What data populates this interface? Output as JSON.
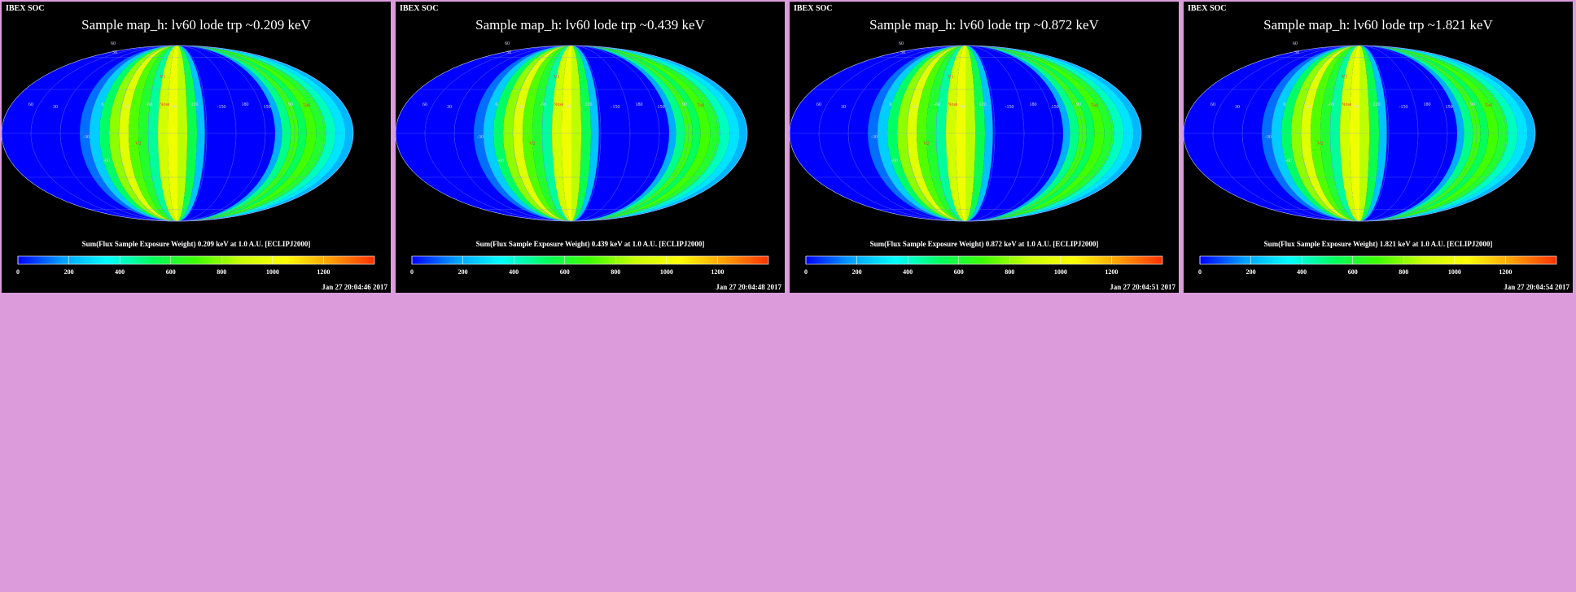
{
  "colors": {
    "page_background": "#dc9cdc",
    "panel_background": "#000000",
    "colormap": [
      "#0000ff",
      "#00a0ff",
      "#00ffff",
      "#00ff60",
      "#40ff00",
      "#c8ff00",
      "#ffff00",
      "#ffa000",
      "#ff3000"
    ]
  },
  "chart_data": [
    {
      "type": "heatmap",
      "projection": "Mollweide all-sky map",
      "corner_label": "IBEX SOC",
      "title": "Sample map_h: lv60 lode trp ~0.209 keV",
      "colorbar_label": "Sum(Flux Sample Exposure Weight) 0.209 keV at 1.0 A.U. [ECLIPJ2000]",
      "colorbar_ticks": [
        "0",
        "200",
        "400",
        "600",
        "800",
        "1000",
        "1200"
      ],
      "colorbar_range": [
        0,
        1400
      ],
      "timestamp": "Jan 27 20:04:46 2017",
      "map_labels": {
        "lon_ticks": [
          "60",
          "30",
          "0",
          "-30",
          "-60",
          "-90",
          "120",
          "-150",
          "180",
          "150",
          "90"
        ],
        "lat_ticks": [
          "30",
          "60",
          "-30",
          "-60"
        ],
        "markers": [
          "V1",
          "V2",
          "Nose",
          "Tail"
        ]
      },
      "bands": [
        {
          "lon_from": -10,
          "lon_to": 0,
          "value": 120
        },
        {
          "lon_from": 0,
          "lon_to": 10,
          "value": 260
        },
        {
          "lon_from": 10,
          "lon_to": 20,
          "value": 520
        },
        {
          "lon_from": 20,
          "lon_to": 30,
          "value": 800
        },
        {
          "lon_from": 30,
          "lon_to": 40,
          "value": 950
        },
        {
          "lon_from": 40,
          "lon_to": 50,
          "value": 720
        },
        {
          "lon_from": 50,
          "lon_to": 60,
          "value": 620
        },
        {
          "lon_from": 60,
          "lon_to": 70,
          "value": 460
        },
        {
          "lon_from": 70,
          "lon_to": 80,
          "value": 900
        },
        {
          "lon_from": 80,
          "lon_to": 90,
          "value": 1000
        },
        {
          "lon_from": 90,
          "lon_to": 100,
          "value": 860
        },
        {
          "lon_from": 100,
          "lon_to": 110,
          "value": 560
        },
        {
          "lon_from": 110,
          "lon_to": 118,
          "value": 240
        },
        {
          "lon_from": 190,
          "lon_to": 197,
          "value": 200
        },
        {
          "lon_from": 197,
          "lon_to": 206,
          "value": 480
        },
        {
          "lon_from": 206,
          "lon_to": 214,
          "value": 680
        },
        {
          "lon_from": 214,
          "lon_to": 222,
          "value": 540
        },
        {
          "lon_from": 222,
          "lon_to": 232,
          "value": 700
        },
        {
          "lon_from": 232,
          "lon_to": 242,
          "value": 620
        },
        {
          "lon_from": 242,
          "lon_to": 252,
          "value": 420
        },
        {
          "lon_from": 252,
          "lon_to": 262,
          "value": 300
        },
        {
          "lon_from": 262,
          "lon_to": 270,
          "value": 220
        },
        {
          "lon_from": 270,
          "lon_to": 278,
          "value": 150
        }
      ]
    },
    {
      "type": "heatmap",
      "projection": "Mollweide all-sky map",
      "corner_label": "IBEX SOC",
      "title": "Sample map_h: lv60 lode trp ~0.439 keV",
      "colorbar_label": "Sum(Flux Sample Exposure Weight) 0.439 keV at 1.0 A.U. [ECLIPJ2000]",
      "colorbar_ticks": [
        "0",
        "200",
        "400",
        "600",
        "800",
        "1000",
        "1200"
      ],
      "colorbar_range": [
        0,
        1400
      ],
      "timestamp": "Jan 27 20:04:48 2017",
      "map_labels": {
        "lon_ticks": [
          "60",
          "30",
          "0",
          "-30",
          "-60",
          "-90",
          "120",
          "-150",
          "180",
          "150",
          "90"
        ],
        "lat_ticks": [
          "30",
          "60",
          "-30",
          "-60"
        ],
        "markers": [
          "V1",
          "V2",
          "Nose",
          "Tail"
        ]
      },
      "bands": [
        {
          "lon_from": -10,
          "lon_to": 0,
          "value": 120
        },
        {
          "lon_from": 0,
          "lon_to": 10,
          "value": 260
        },
        {
          "lon_from": 10,
          "lon_to": 20,
          "value": 520
        },
        {
          "lon_from": 20,
          "lon_to": 30,
          "value": 800
        },
        {
          "lon_from": 30,
          "lon_to": 40,
          "value": 950
        },
        {
          "lon_from": 40,
          "lon_to": 50,
          "value": 720
        },
        {
          "lon_from": 50,
          "lon_to": 60,
          "value": 620
        },
        {
          "lon_from": 60,
          "lon_to": 70,
          "value": 460
        },
        {
          "lon_from": 70,
          "lon_to": 80,
          "value": 900
        },
        {
          "lon_from": 80,
          "lon_to": 90,
          "value": 1000
        },
        {
          "lon_from": 90,
          "lon_to": 100,
          "value": 860
        },
        {
          "lon_from": 100,
          "lon_to": 110,
          "value": 560
        },
        {
          "lon_from": 110,
          "lon_to": 118,
          "value": 240
        },
        {
          "lon_from": 190,
          "lon_to": 197,
          "value": 200
        },
        {
          "lon_from": 197,
          "lon_to": 206,
          "value": 480
        },
        {
          "lon_from": 206,
          "lon_to": 214,
          "value": 680
        },
        {
          "lon_from": 214,
          "lon_to": 222,
          "value": 540
        },
        {
          "lon_from": 222,
          "lon_to": 232,
          "value": 700
        },
        {
          "lon_from": 232,
          "lon_to": 242,
          "value": 620
        },
        {
          "lon_from": 242,
          "lon_to": 252,
          "value": 420
        },
        {
          "lon_from": 252,
          "lon_to": 262,
          "value": 300
        },
        {
          "lon_from": 262,
          "lon_to": 270,
          "value": 220
        },
        {
          "lon_from": 270,
          "lon_to": 278,
          "value": 150
        }
      ]
    },
    {
      "type": "heatmap",
      "projection": "Mollweide all-sky map",
      "corner_label": "IBEX SOC",
      "title": "Sample map_h: lv60 lode trp ~0.872 keV",
      "colorbar_label": "Sum(Flux Sample Exposure Weight) 0.872 keV at 1.0 A.U. [ECLIPJ2000]",
      "colorbar_ticks": [
        "0",
        "200",
        "400",
        "600",
        "800",
        "1000",
        "1200"
      ],
      "colorbar_range": [
        0,
        1400
      ],
      "timestamp": "Jan 27 20:04:51 2017",
      "map_labels": {
        "lon_ticks": [
          "60",
          "30",
          "0",
          "-30",
          "-60",
          "-90",
          "120",
          "-150",
          "180",
          "150",
          "90"
        ],
        "lat_ticks": [
          "30",
          "60",
          "-30",
          "-60"
        ],
        "markers": [
          "V1",
          "V2",
          "Nose",
          "Tail"
        ]
      },
      "bands": [
        {
          "lon_from": -10,
          "lon_to": 0,
          "value": 120
        },
        {
          "lon_from": 0,
          "lon_to": 10,
          "value": 260
        },
        {
          "lon_from": 10,
          "lon_to": 20,
          "value": 520
        },
        {
          "lon_from": 20,
          "lon_to": 30,
          "value": 800
        },
        {
          "lon_from": 30,
          "lon_to": 40,
          "value": 950
        },
        {
          "lon_from": 40,
          "lon_to": 50,
          "value": 720
        },
        {
          "lon_from": 50,
          "lon_to": 60,
          "value": 620
        },
        {
          "lon_from": 60,
          "lon_to": 70,
          "value": 460
        },
        {
          "lon_from": 70,
          "lon_to": 80,
          "value": 900
        },
        {
          "lon_from": 80,
          "lon_to": 90,
          "value": 1000
        },
        {
          "lon_from": 90,
          "lon_to": 100,
          "value": 860
        },
        {
          "lon_from": 100,
          "lon_to": 110,
          "value": 560
        },
        {
          "lon_from": 110,
          "lon_to": 118,
          "value": 240
        },
        {
          "lon_from": 190,
          "lon_to": 197,
          "value": 200
        },
        {
          "lon_from": 197,
          "lon_to": 206,
          "value": 480
        },
        {
          "lon_from": 206,
          "lon_to": 214,
          "value": 680
        },
        {
          "lon_from": 214,
          "lon_to": 222,
          "value": 540
        },
        {
          "lon_from": 222,
          "lon_to": 232,
          "value": 700
        },
        {
          "lon_from": 232,
          "lon_to": 242,
          "value": 620
        },
        {
          "lon_from": 242,
          "lon_to": 252,
          "value": 420
        },
        {
          "lon_from": 252,
          "lon_to": 262,
          "value": 300
        },
        {
          "lon_from": 262,
          "lon_to": 270,
          "value": 220
        },
        {
          "lon_from": 270,
          "lon_to": 278,
          "value": 150
        }
      ]
    },
    {
      "type": "heatmap",
      "projection": "Mollweide all-sky map",
      "corner_label": "IBEX SOC",
      "title": "Sample map_h: lv60 lode trp ~1.821 keV",
      "colorbar_label": "Sum(Flux Sample Exposure Weight) 1.821 keV at 1.0 A.U. [ECLIPJ2000]",
      "colorbar_ticks": [
        "0",
        "200",
        "400",
        "600",
        "800",
        "1000",
        "1200"
      ],
      "colorbar_range": [
        0,
        1400
      ],
      "timestamp": "Jan 27 20:04:54 2017",
      "map_labels": {
        "lon_ticks": [
          "60",
          "30",
          "0",
          "-30",
          "-60",
          "-90",
          "120",
          "-150",
          "180",
          "150",
          "90"
        ],
        "lat_ticks": [
          "30",
          "60",
          "-30",
          "-60"
        ],
        "markers": [
          "V1",
          "V2",
          "Nose",
          "Tail"
        ]
      },
      "bands": [
        {
          "lon_from": -10,
          "lon_to": 0,
          "value": 120
        },
        {
          "lon_from": 0,
          "lon_to": 10,
          "value": 260
        },
        {
          "lon_from": 10,
          "lon_to": 20,
          "value": 520
        },
        {
          "lon_from": 20,
          "lon_to": 30,
          "value": 800
        },
        {
          "lon_from": 30,
          "lon_to": 40,
          "value": 950
        },
        {
          "lon_from": 40,
          "lon_to": 50,
          "value": 720
        },
        {
          "lon_from": 50,
          "lon_to": 60,
          "value": 620
        },
        {
          "lon_from": 60,
          "lon_to": 70,
          "value": 460
        },
        {
          "lon_from": 70,
          "lon_to": 80,
          "value": 900
        },
        {
          "lon_from": 80,
          "lon_to": 90,
          "value": 1000
        },
        {
          "lon_from": 90,
          "lon_to": 100,
          "value": 860
        },
        {
          "lon_from": 100,
          "lon_to": 110,
          "value": 560
        },
        {
          "lon_from": 110,
          "lon_to": 118,
          "value": 240
        },
        {
          "lon_from": 190,
          "lon_to": 197,
          "value": 200
        },
        {
          "lon_from": 197,
          "lon_to": 206,
          "value": 480
        },
        {
          "lon_from": 206,
          "lon_to": 214,
          "value": 680
        },
        {
          "lon_from": 214,
          "lon_to": 222,
          "value": 540
        },
        {
          "lon_from": 222,
          "lon_to": 232,
          "value": 700
        },
        {
          "lon_from": 232,
          "lon_to": 242,
          "value": 620
        },
        {
          "lon_from": 242,
          "lon_to": 252,
          "value": 420
        },
        {
          "lon_from": 252,
          "lon_to": 262,
          "value": 300
        },
        {
          "lon_from": 262,
          "lon_to": 270,
          "value": 220
        },
        {
          "lon_from": 270,
          "lon_to": 278,
          "value": 150
        }
      ]
    }
  ]
}
